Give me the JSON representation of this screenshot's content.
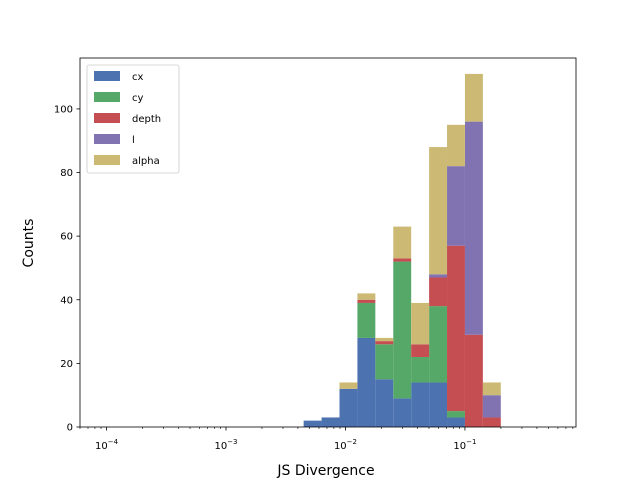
{
  "chart_data": {
    "type": "bar",
    "stacked": true,
    "x_scale": "log",
    "bin_edges": [
      0.0001,
      0.0001412538,
      0.0001995262,
      0.0002818383,
      0.0003981072,
      0.0005623413,
      0.0007943282,
      0.0011220185,
      0.0015848932,
      0.0022387211,
      0.0031622777,
      0.0044668359,
      0.0063095734,
      0.0089125094,
      0.0125892541,
      0.0177827941,
      0.0251188643,
      0.0354813389,
      0.0501187234,
      0.0707945784,
      0.1,
      0.1412537545,
      0.1995262315,
      0.2818382931,
      0.3981071706,
      0.5623413252
    ],
    "series": [
      {
        "name": "cx",
        "color": "#4c72b0",
        "values": [
          0,
          0,
          0,
          0,
          0,
          0,
          0,
          0,
          0,
          0,
          0,
          2,
          3,
          12,
          28,
          15,
          9,
          14,
          14,
          3,
          0,
          0,
          0,
          0,
          0
        ]
      },
      {
        "name": "cy",
        "color": "#55a868",
        "values": [
          0,
          0,
          0,
          0,
          0,
          0,
          0,
          0,
          0,
          0,
          0,
          0,
          0,
          0,
          11,
          11,
          43,
          8,
          24,
          2,
          0,
          0,
          0,
          0,
          0
        ]
      },
      {
        "name": "depth",
        "color": "#c44e52",
        "values": [
          0,
          0,
          0,
          0,
          0,
          0,
          0,
          0,
          0,
          0,
          0,
          0,
          0,
          0,
          1,
          1,
          1,
          4,
          9,
          52,
          29,
          3,
          0,
          0,
          0
        ]
      },
      {
        "name": "l",
        "color": "#8172b2",
        "values": [
          0,
          0,
          0,
          0,
          0,
          0,
          0,
          0,
          0,
          0,
          0,
          0,
          0,
          0,
          0,
          0,
          0,
          0,
          1,
          25,
          67,
          7,
          0,
          0,
          0
        ]
      },
      {
        "name": "alpha",
        "color": "#ccb974",
        "values": [
          0,
          0,
          0,
          0,
          0,
          0,
          0,
          0,
          0,
          0,
          0,
          0,
          0,
          2,
          2,
          1,
          10,
          13,
          40,
          13,
          15,
          4,
          0,
          0,
          0
        ]
      }
    ],
    "xlabel": "JS Divergence",
    "ylabel": "Counts",
    "xlim": [
      6e-05,
      0.85
    ],
    "ylim": [
      0,
      116
    ],
    "x_ticks": [
      {
        "value": 0.0001,
        "base": "10",
        "exp": "−4"
      },
      {
        "value": 0.001,
        "base": "10",
        "exp": "−3"
      },
      {
        "value": 0.01,
        "base": "10",
        "exp": "−2"
      },
      {
        "value": 0.1,
        "base": "10",
        "exp": "−1"
      }
    ],
    "y_ticks": [
      0,
      20,
      40,
      60,
      80,
      100
    ],
    "grid": false,
    "legend_position": "upper-left"
  }
}
